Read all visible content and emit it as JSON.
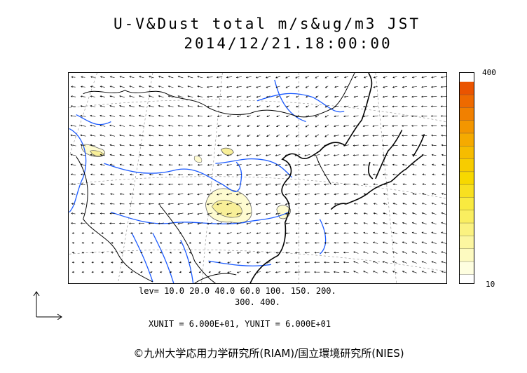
{
  "title": {
    "line1": "U-V&Dust total m/s&ug/m3 JST",
    "line2": "2014/12/21.18:00:00"
  },
  "colorbar": {
    "max_label": "400",
    "min_label": "10",
    "colors": [
      "#fefee0",
      "#fdfac0",
      "#fcf6a0",
      "#fbf280",
      "#faee60",
      "#f9ea40",
      "#f8e020",
      "#f7d800",
      "#f7cc00",
      "#f6bc00",
      "#f5aa00",
      "#f39600",
      "#f18000",
      "#ee6a00",
      "#ea5400"
    ]
  },
  "levels": {
    "line1": "lev=  10.0  20.0  40.0  60.0  100.  150.  200.",
    "line2": "300.  400."
  },
  "units": {
    "text": "XUNIT = 6.000E+01, YUNIT = 6.000E+01"
  },
  "credit": {
    "text": "©九州大学応用力学研究所(RIAM)/国立環境研究所(NIES)"
  },
  "colors": {
    "coast": "#000000",
    "river": "#1a5aff",
    "dust_low": "#fefbd0",
    "dust_mid": "#f8ef98",
    "grid": "#888888"
  }
}
